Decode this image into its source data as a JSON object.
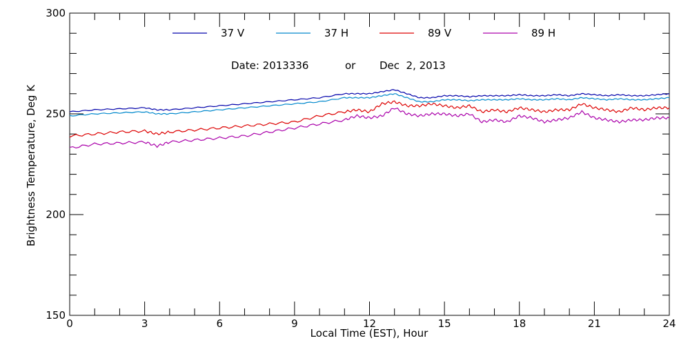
{
  "chart_data": {
    "type": "line",
    "title": "",
    "xlabel": "Local Time (EST), Hour",
    "ylabel": "Brightness Temperature, Deg K",
    "xlim": [
      0,
      24
    ],
    "ylim": [
      150,
      300
    ],
    "x_ticks": [
      0,
      3,
      6,
      9,
      12,
      15,
      18,
      21,
      24
    ],
    "x_tick_labels": [
      "0",
      "3",
      "6",
      "9",
      "12",
      "15",
      "18",
      "21",
      "24"
    ],
    "y_ticks": [
      150,
      200,
      250,
      300
    ],
    "y_tick_labels": [
      "150",
      "200",
      "250",
      "300"
    ],
    "grid": false,
    "legend_position": "top",
    "date_annotation": {
      "prefix": "Date: 2013336",
      "connector": "or",
      "date": "Dec  2, 2013"
    },
    "x": [
      0,
      1,
      2,
      3,
      3.5,
      4,
      5,
      6,
      7,
      8,
      9,
      10,
      11,
      11.5,
      12,
      12.5,
      13,
      13.5,
      14,
      14.5,
      15,
      15.5,
      16,
      16.5,
      17,
      17.5,
      18,
      18.5,
      19,
      19.5,
      20,
      20.5,
      21,
      21.5,
      22,
      22.5,
      23,
      23.5,
      24
    ],
    "series": [
      {
        "name": "37 V",
        "color": "#0000aa",
        "values": [
          251,
          252,
          252.5,
          253,
          252,
          252,
          253,
          254,
          255,
          256,
          257,
          258,
          260,
          260,
          260,
          261,
          262,
          260,
          258,
          258,
          259,
          259,
          258.5,
          259,
          259,
          259,
          259.5,
          259,
          259,
          259.5,
          259,
          260,
          259.5,
          259,
          259.5,
          259,
          259,
          259.5,
          260
        ]
      },
      {
        "name": "37 H",
        "color": "#0088cc",
        "values": [
          249,
          250,
          250.5,
          251,
          250,
          250,
          251,
          252,
          253,
          254,
          255,
          256,
          258,
          258,
          258,
          259,
          260,
          258,
          256,
          256,
          257,
          257,
          256.5,
          257,
          257,
          257,
          257.5,
          257,
          257,
          257.5,
          257,
          258,
          257.5,
          257,
          257.5,
          257,
          257,
          257.5,
          258
        ]
      },
      {
        "name": "89 V",
        "color": "#dd0000",
        "values": [
          239,
          240,
          241,
          241.5,
          240,
          241,
          242,
          243,
          244,
          245,
          246,
          249,
          251,
          252,
          251,
          255,
          256,
          254,
          254,
          255,
          254,
          253,
          254,
          251,
          252,
          251,
          253,
          252,
          251,
          252,
          252,
          255,
          253,
          252,
          251,
          253,
          252,
          253,
          253
        ]
      },
      {
        "name": "89 H",
        "color": "#aa00aa",
        "values": [
          233,
          235,
          235.5,
          236,
          234,
          236,
          237,
          238,
          239,
          241,
          243,
          245,
          247,
          249,
          248,
          249,
          253,
          250,
          249,
          250,
          250,
          249,
          250,
          246,
          247,
          246,
          249,
          248,
          246,
          247,
          248,
          251,
          248,
          247,
          246,
          247,
          247,
          248,
          248
        ]
      }
    ]
  }
}
